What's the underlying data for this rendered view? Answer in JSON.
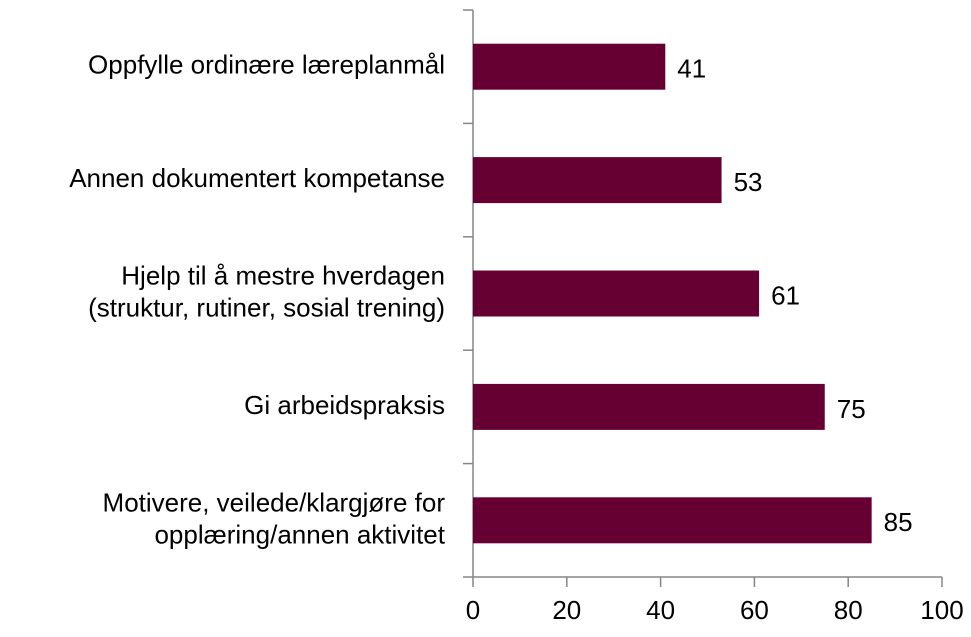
{
  "chart_data": {
    "type": "bar",
    "orientation": "horizontal",
    "categories": [
      "Oppfylle ordinære læreplanmål",
      "Annen dokumentert kompetanse",
      "Hjelp til å mestre hverdagen\n(struktur, rutiner, sosial trening)",
      "Gi arbeidspraksis",
      "Motivere, veilede/klargjøre for\nopplæring/annen aktivitet"
    ],
    "values": [
      41,
      53,
      61,
      75,
      85
    ],
    "color": "#660033",
    "xlim": [
      0,
      100
    ],
    "xticks": [
      0,
      20,
      40,
      60,
      80,
      100
    ],
    "grid": false
  }
}
